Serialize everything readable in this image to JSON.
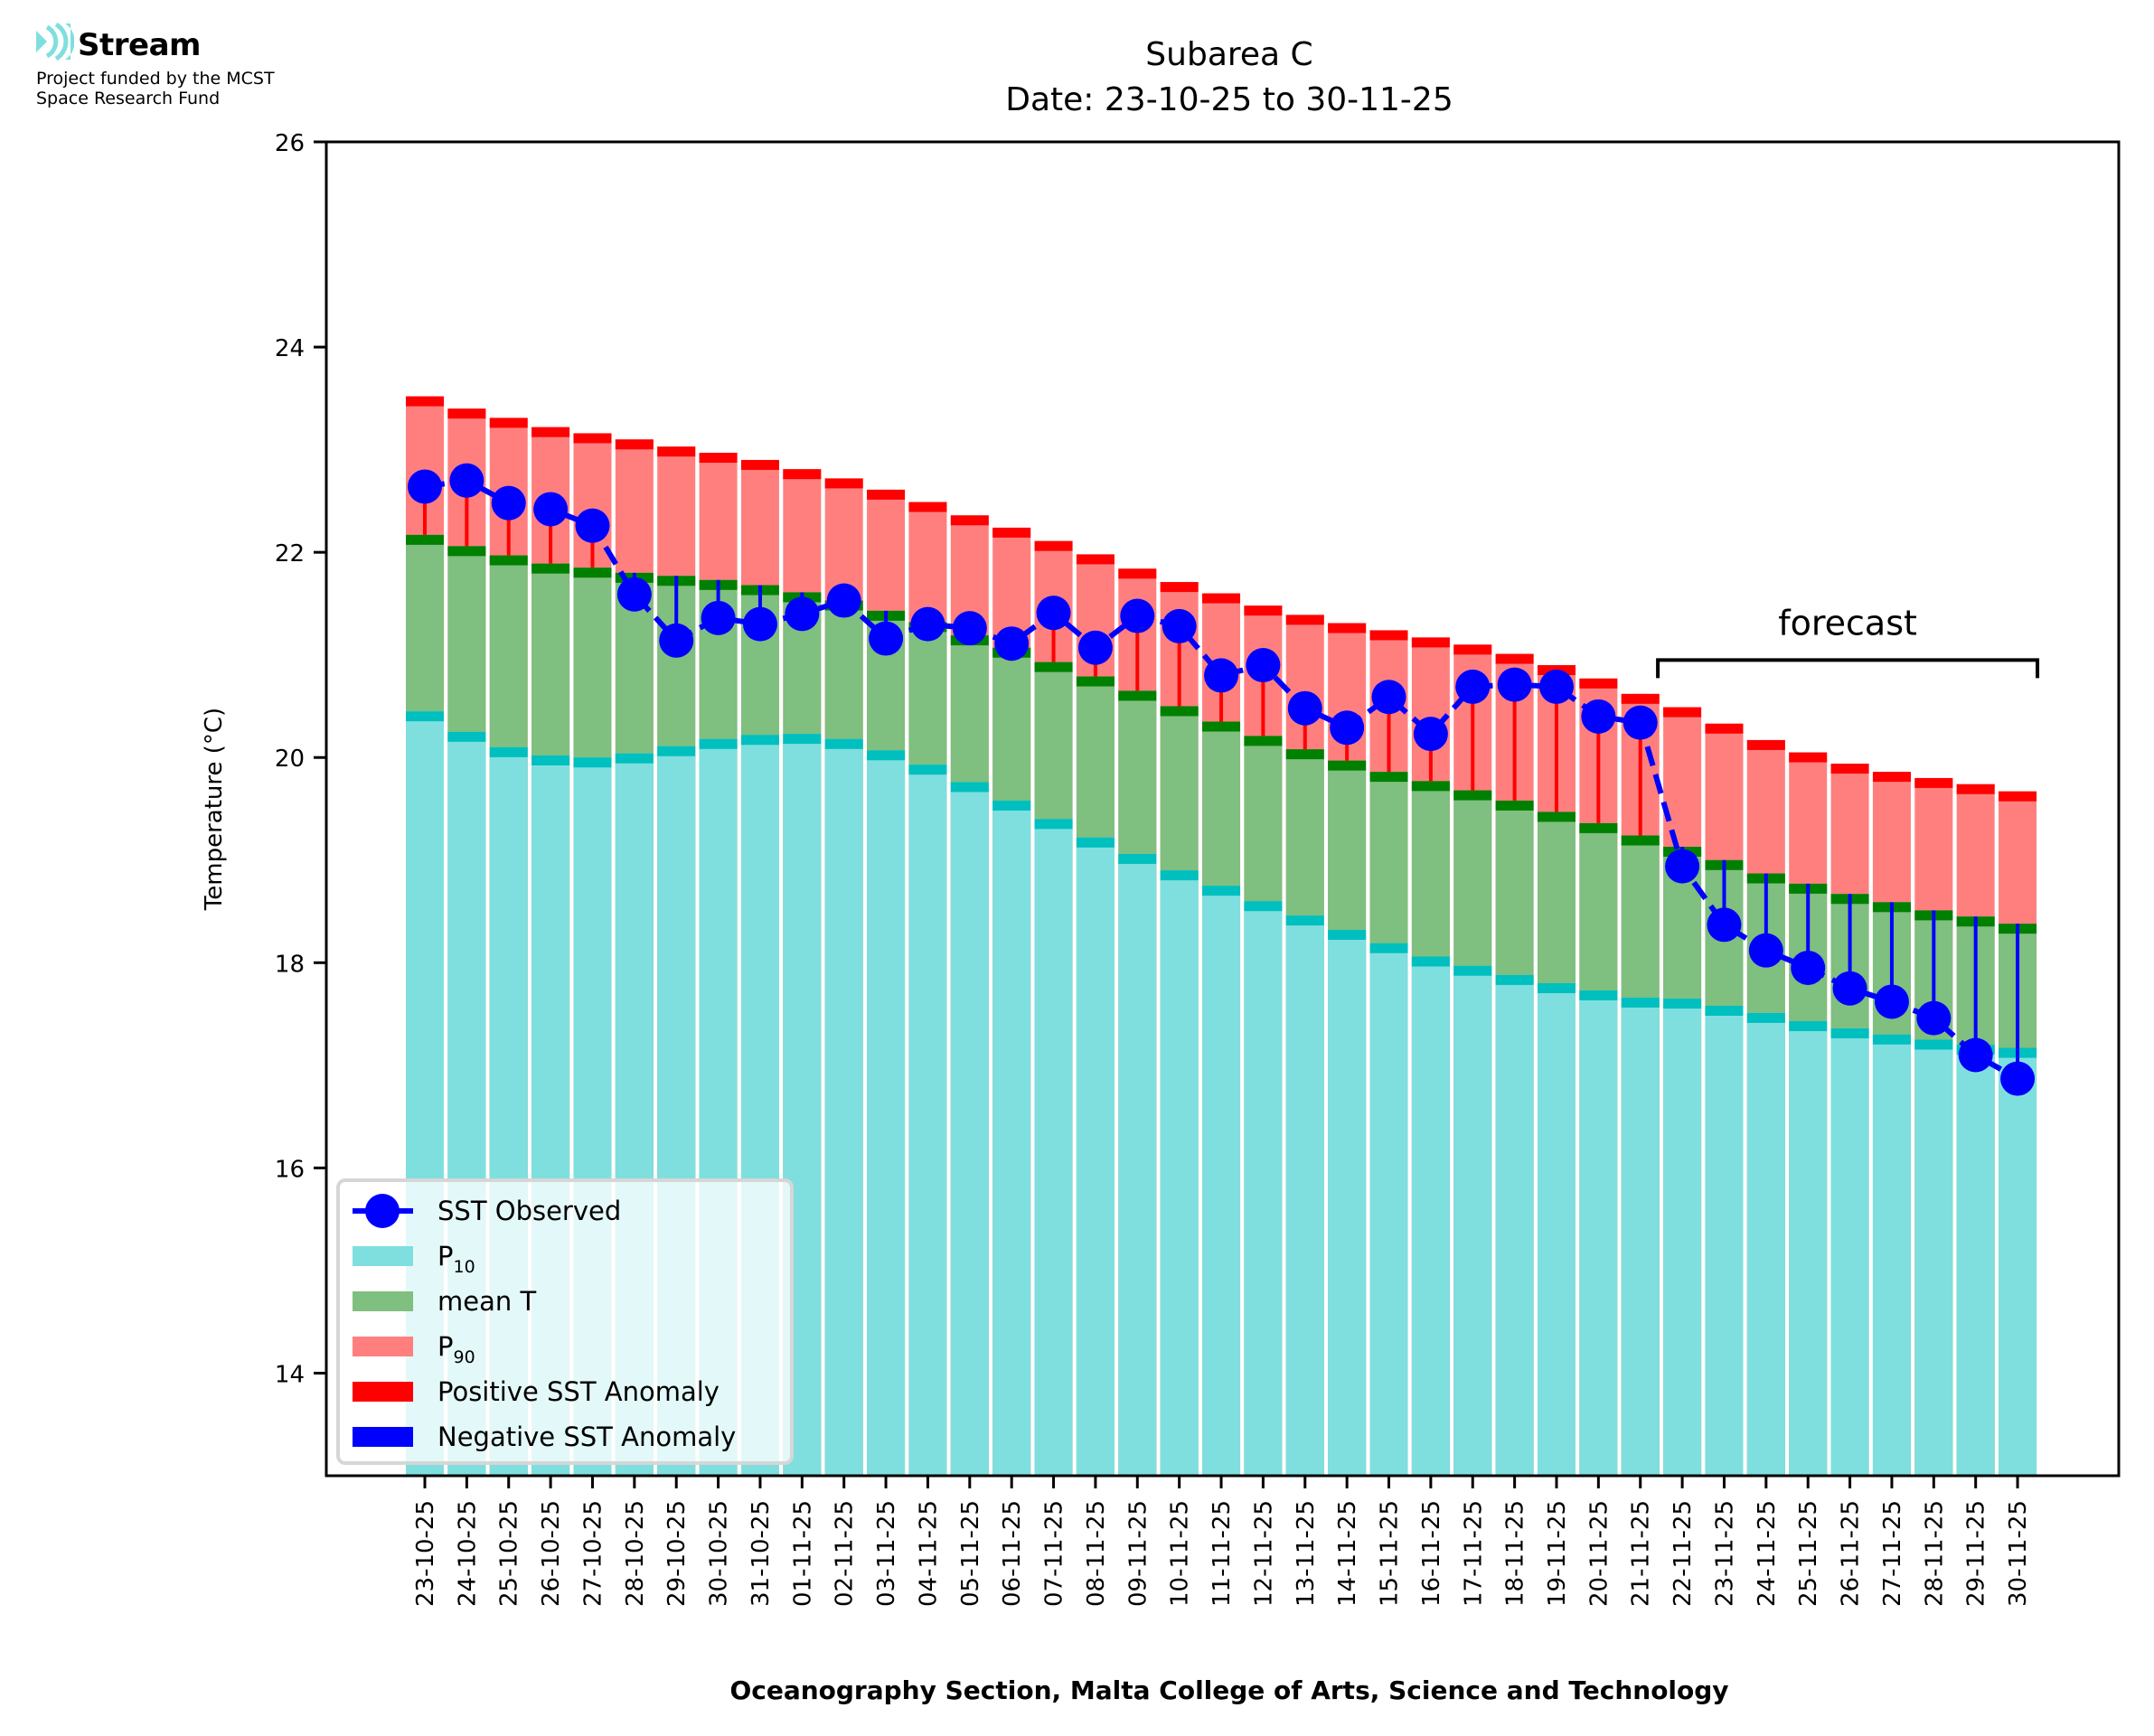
{
  "logo": {
    "icon": "stream-waves-icon",
    "brand": "Stream",
    "funded_line1": "Project funded by the MCST",
    "funded_line2": "Space Research Fund"
  },
  "chart_data": {
    "type": "bar",
    "title": "Subarea C",
    "subtitle": "Date: 23-10-25 to 30-11-25",
    "xlabel": "Oceanography Section, Malta College of Arts, Science and Technology",
    "ylabel": "Temperature (°C)",
    "ylim": [
      13,
      26
    ],
    "yticks": [
      14,
      16,
      18,
      20,
      22,
      24,
      26
    ],
    "grid": false,
    "legend_position": "bottom-left",
    "categories": [
      "23-10-25",
      "24-10-25",
      "25-10-25",
      "26-10-25",
      "27-10-25",
      "28-10-25",
      "29-10-25",
      "30-10-25",
      "31-10-25",
      "01-11-25",
      "02-11-25",
      "03-11-25",
      "04-11-25",
      "05-11-25",
      "06-11-25",
      "07-11-25",
      "08-11-25",
      "09-11-25",
      "10-11-25",
      "11-11-25",
      "12-11-25",
      "13-11-25",
      "14-11-25",
      "15-11-25",
      "16-11-25",
      "17-11-25",
      "18-11-25",
      "19-11-25",
      "20-11-25",
      "21-11-25",
      "22-11-25",
      "23-11-25",
      "24-11-25",
      "25-11-25",
      "26-11-25",
      "27-11-25",
      "28-11-25",
      "29-11-25",
      "30-11-25"
    ],
    "series": [
      {
        "name": "P90",
        "label_base": "P",
        "label_sub": "90",
        "color": "#ff7f7f",
        "cap_color": "#ff0000",
        "values": [
          23.52,
          23.4,
          23.31,
          23.22,
          23.16,
          23.1,
          23.03,
          22.97,
          22.9,
          22.81,
          22.72,
          22.61,
          22.49,
          22.36,
          22.24,
          22.11,
          21.98,
          21.84,
          21.71,
          21.6,
          21.48,
          21.39,
          21.31,
          21.24,
          21.17,
          21.1,
          21.01,
          20.9,
          20.77,
          20.62,
          20.49,
          20.33,
          20.17,
          20.05,
          19.94,
          19.86,
          19.8,
          19.74,
          19.67
        ]
      },
      {
        "name": "mean T",
        "label_base": "mean T",
        "label_sub": "",
        "color": "#7fbf7f",
        "cap_color": "#008000",
        "values": [
          22.17,
          22.06,
          21.97,
          21.89,
          21.85,
          21.8,
          21.77,
          21.73,
          21.68,
          21.61,
          21.53,
          21.43,
          21.32,
          21.19,
          21.07,
          20.93,
          20.79,
          20.65,
          20.5,
          20.35,
          20.21,
          20.08,
          19.97,
          19.86,
          19.77,
          19.68,
          19.58,
          19.47,
          19.36,
          19.24,
          19.13,
          19.0,
          18.87,
          18.77,
          18.67,
          18.59,
          18.51,
          18.45,
          18.38
        ]
      },
      {
        "name": "P10",
        "label_base": "P",
        "label_sub": "10",
        "color": "#7fdfdf",
        "cap_color": "#00bfbf",
        "values": [
          20.45,
          20.25,
          20.1,
          20.02,
          20.0,
          20.04,
          20.11,
          20.18,
          20.22,
          20.23,
          20.18,
          20.07,
          19.93,
          19.76,
          19.58,
          19.4,
          19.22,
          19.06,
          18.9,
          18.75,
          18.6,
          18.46,
          18.32,
          18.19,
          18.06,
          17.97,
          17.88,
          17.8,
          17.73,
          17.66,
          17.65,
          17.58,
          17.51,
          17.43,
          17.36,
          17.3,
          17.25,
          17.2,
          17.17
        ]
      },
      {
        "name": "SST Observed",
        "label_base": "SST Observed",
        "label_sub": "",
        "color": "#0000ff",
        "style": "dashed-with-markers",
        "values": [
          22.64,
          22.7,
          22.48,
          22.42,
          22.26,
          21.59,
          21.14,
          21.36,
          21.3,
          21.4,
          21.53,
          21.16,
          21.3,
          21.26,
          21.11,
          21.41,
          21.07,
          21.38,
          21.28,
          20.8,
          20.9,
          20.48,
          20.29,
          20.59,
          20.23,
          20.69,
          20.71,
          20.69,
          20.4,
          20.34,
          18.94,
          18.37,
          18.12,
          17.95,
          17.75,
          17.62,
          17.46,
          17.1,
          16.87
        ]
      }
    ],
    "anomaly_legend": [
      {
        "name": "Positive SST Anomaly",
        "color": "#ff0000"
      },
      {
        "name": "Negative SST Anomaly",
        "color": "#0000ff"
      }
    ],
    "annotation": {
      "text": "forecast",
      "from_category": "22-11-25",
      "to_category": "30-11-25",
      "level": 20.95
    }
  }
}
